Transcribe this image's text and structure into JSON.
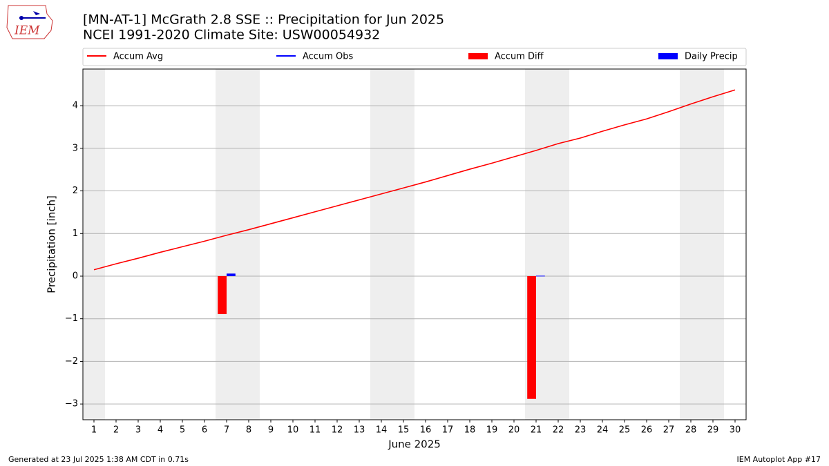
{
  "chart_data": {
    "type": "combo",
    "title": "[MN-AT-1] McGrath 2.8 SSE :: Precipitation for Jun 2025",
    "subtitle": "NCEI 1991-2020 Climate Site: USW00054932",
    "logo_text": "IEM",
    "xlabel": "June 2025",
    "ylabel": "Precipitation [inch]",
    "footer_left": "Generated at 23 Jul 2025 1:38 AM CDT in 0.71s",
    "footer_right": "IEM Autoplot App #17",
    "x": [
      1,
      2,
      3,
      4,
      5,
      6,
      7,
      8,
      9,
      10,
      11,
      12,
      13,
      14,
      15,
      16,
      17,
      18,
      19,
      20,
      21,
      22,
      23,
      24,
      25,
      26,
      27,
      28,
      29,
      30
    ],
    "xlim": [
      0.5,
      30.5
    ],
    "xticks": [
      1,
      2,
      3,
      4,
      5,
      6,
      7,
      8,
      9,
      10,
      11,
      12,
      13,
      14,
      15,
      16,
      17,
      18,
      19,
      20,
      21,
      22,
      23,
      24,
      25,
      26,
      27,
      28,
      29,
      30
    ],
    "ylim": [
      -3.37,
      4.86
    ],
    "yticks": [
      {
        "value": -3,
        "label": "−3"
      },
      {
        "value": -2,
        "label": "−2"
      },
      {
        "value": -1,
        "label": "−1"
      },
      0,
      1,
      2,
      3,
      4
    ],
    "grid": true,
    "shaded_ranges": [
      [
        0.5,
        1.5
      ],
      [
        6.5,
        8.5
      ],
      [
        13.5,
        15.5
      ],
      [
        20.5,
        22.5
      ],
      [
        27.5,
        29.5
      ]
    ],
    "shade_color": "#eeeeee",
    "series": [
      {
        "name": "Accum Avg",
        "type": "line",
        "color": "#ff0000",
        "values": [
          0.15,
          0.29,
          0.42,
          0.56,
          0.69,
          0.82,
          0.96,
          1.09,
          1.23,
          1.37,
          1.51,
          1.65,
          1.79,
          1.93,
          2.07,
          2.21,
          2.36,
          2.51,
          2.65,
          2.8,
          2.95,
          3.11,
          3.24,
          3.4,
          3.55,
          3.69,
          3.86,
          4.04,
          4.21,
          4.37
        ]
      },
      {
        "name": "Accum Obs",
        "type": "line",
        "color": "#0000ff",
        "values": [
          null,
          null,
          null,
          null,
          null,
          null,
          null,
          null,
          null,
          null,
          null,
          null,
          null,
          null,
          null,
          null,
          null,
          null,
          null,
          null,
          null,
          null,
          null,
          null,
          null,
          null,
          null,
          null,
          null,
          null
        ]
      },
      {
        "name": "Accum Diff",
        "type": "bar",
        "color": "#ff0000",
        "offset": "left",
        "values": [
          null,
          null,
          null,
          null,
          null,
          null,
          -0.89,
          null,
          null,
          null,
          null,
          null,
          null,
          null,
          null,
          null,
          null,
          null,
          null,
          null,
          -2.88,
          null,
          null,
          null,
          null,
          null,
          null,
          null,
          null,
          null
        ]
      },
      {
        "name": "Daily Precip",
        "type": "bar",
        "color": "#0000ff",
        "offset": "right",
        "values": [
          null,
          null,
          null,
          null,
          null,
          null,
          0.06,
          null,
          null,
          null,
          null,
          null,
          null,
          null,
          null,
          null,
          null,
          null,
          null,
          null,
          0.01,
          null,
          null,
          null,
          null,
          null,
          null,
          null,
          null,
          null
        ]
      }
    ]
  }
}
